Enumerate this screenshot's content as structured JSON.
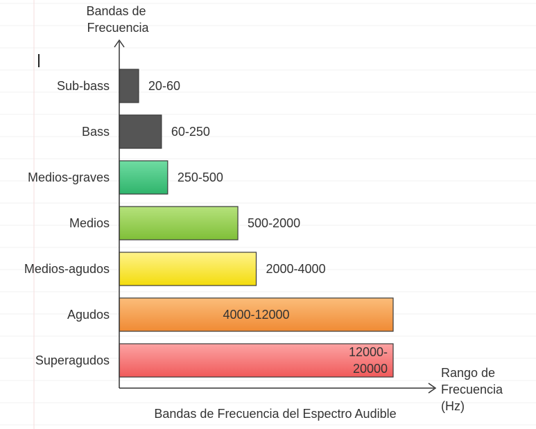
{
  "chart_data": {
    "type": "bar",
    "orientation": "horizontal",
    "title": "Bandas de Frecuencia del Espectro Audible",
    "ylabel": [
      "Bandas de",
      "Frecuencia"
    ],
    "xlabel": [
      "Rango de",
      "Frecuencia",
      "(Hz)"
    ],
    "xlim": [
      0,
      20000
    ],
    "categories": [
      "Sub-bass",
      "Bass",
      "Medios-graves",
      "Medios",
      "Medios-agudos",
      "Agudos",
      "Superagudos"
    ],
    "ranges": [
      [
        20,
        60
      ],
      [
        60,
        250
      ],
      [
        250,
        500
      ],
      [
        500,
        2000
      ],
      [
        2000,
        4000
      ],
      [
        4000,
        12000
      ],
      [
        12000,
        20000
      ]
    ],
    "data_labels": [
      "20-60",
      "60-250",
      "250-500",
      "500-2000",
      "2000-4000",
      "4000-12000",
      [
        "12000-",
        "20000"
      ]
    ],
    "colors": [
      "#666666",
      "#555555",
      "#3dbf7a",
      "#8fcc4a",
      "#f6e21b",
      "#f49a45",
      "#f26b6b"
    ],
    "grid": true,
    "legend": "none"
  }
}
